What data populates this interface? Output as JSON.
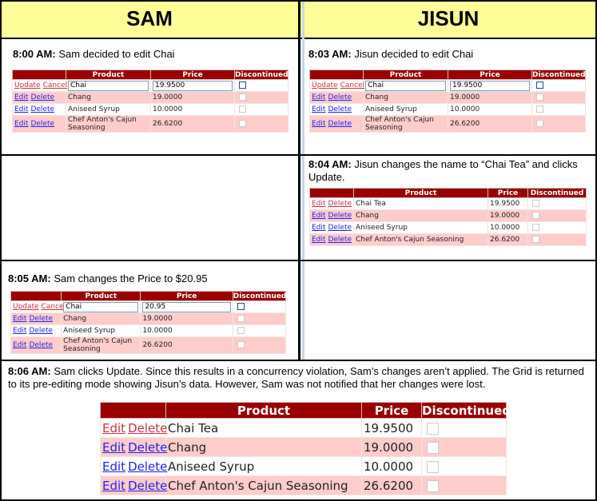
{
  "columns": {
    "sam": "SAM",
    "jisun": "JISUN"
  },
  "headers": [
    "",
    "Product",
    "Price",
    "Discontinued"
  ],
  "links": {
    "edit": "Edit",
    "delete": "Delete",
    "update": "Update",
    "cancel": "Cancel"
  },
  "steps": [
    {
      "time": "8:00 AM:",
      "text": " Sam decided to edit Chai"
    },
    {
      "time": "8:03 AM:",
      "text": " Jisun decided to edit Chai"
    },
    {
      "time": "8:04 AM:",
      "text": " Jisun changes the name to “Chai Tea” and clicks Update."
    },
    {
      "time": "8:05 AM:",
      "text": " Sam changes the Price to $20.95"
    },
    {
      "time": "8:06 AM:",
      "text": " Sam clicks Update. Since this results in a concurrency violation, Sam’s changes aren’t applied. The Grid is returned to its pre-editing mode showing Jisun’s data. However, Sam was not notified that her changes were lost."
    }
  ],
  "grids": [
    {
      "editing": true,
      "rows": [
        [
          "Chai",
          "19.9500"
        ],
        [
          "Chang",
          "19.0000"
        ],
        [
          "Aniseed Syrup",
          "10.0000"
        ],
        [
          "Chef Anton's Cajun Seasoning",
          "26.6200"
        ]
      ]
    },
    {
      "editing": true,
      "rows": [
        [
          "Chai",
          "19.9500"
        ],
        [
          "Chang",
          "19.0000"
        ],
        [
          "Aniseed Syrup",
          "10.0000"
        ],
        [
          "Chef Anton's Cajun Seasoning",
          "26.6200"
        ]
      ]
    },
    {
      "editing": false,
      "rows": [
        [
          "Chai Tea",
          "19.9500"
        ],
        [
          "Chang",
          "19.0000"
        ],
        [
          "Aniseed Syrup",
          "10.0000"
        ],
        [
          "Chef Anton's Cajun Seasoning",
          "26.6200"
        ]
      ]
    },
    {
      "editing": true,
      "rows": [
        [
          "Chai",
          "20.95"
        ],
        [
          "Chang",
          "19.0000"
        ],
        [
          "Aniseed Syrup",
          "10.0000"
        ],
        [
          "Chef Anton's Cajun Seasoning",
          "26.6200"
        ]
      ]
    },
    {
      "editing": false,
      "rows": [
        [
          "Chai Tea",
          "19.9500"
        ],
        [
          "Chang",
          "19.0000"
        ],
        [
          "Aniseed Syrup",
          "10.0000"
        ],
        [
          "Chef Anton's Cajun Seasoning",
          "26.6200"
        ]
      ]
    }
  ],
  "colors": {
    "header_bg": "#ffff99",
    "grid_header": "#990000",
    "alt_row": "#ffcccc",
    "link": "#2222ee",
    "selected_link": "#cc3344"
  }
}
